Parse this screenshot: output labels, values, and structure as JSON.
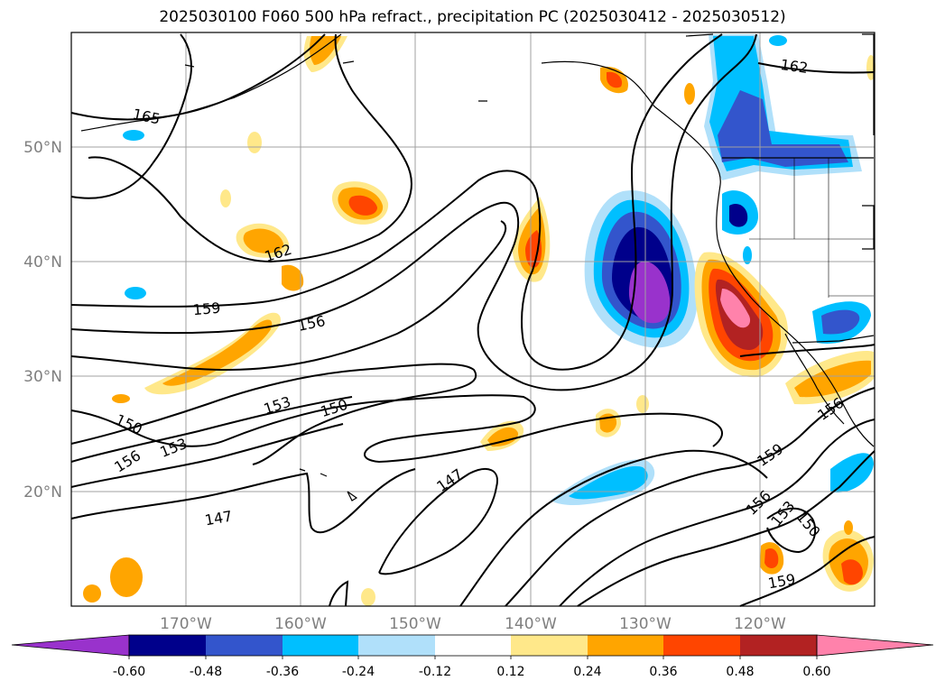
{
  "title": "2025030100 F060 500 hPa refract., precipitation PC (2025030412 - 2025030512)",
  "chart_data": {
    "type": "contour",
    "title": "2025030100 F060 500 hPa refract., precipitation PC (2025030412 - 2025030512)",
    "x_ticks": [
      "170°W",
      "160°W",
      "150°W",
      "140°W",
      "130°W",
      "120°W"
    ],
    "y_ticks": [
      "20°N",
      "30°N",
      "40°N",
      "50°N"
    ],
    "x_tick_values": [
      -170,
      -160,
      -150,
      -140,
      -130,
      -120
    ],
    "y_tick_values": [
      20,
      30,
      40,
      50
    ],
    "lon_range": [
      -180,
      -110
    ],
    "lat_range": [
      10,
      60
    ],
    "grid": true,
    "contour_levels": [
      147,
      150,
      153,
      156,
      159,
      162,
      165
    ],
    "contour_labels": [
      {
        "text": "165"
      },
      {
        "text": "162"
      },
      {
        "text": "162"
      },
      {
        "text": "159"
      },
      {
        "text": "156"
      },
      {
        "text": "153"
      },
      {
        "text": "150"
      },
      {
        "text": "150"
      },
      {
        "text": "153"
      },
      {
        "text": "156"
      },
      {
        "text": "147"
      },
      {
        "text": "147"
      },
      {
        "text": "159"
      },
      {
        "text": "156"
      },
      {
        "text": "153"
      },
      {
        "text": "150"
      },
      {
        "text": "156"
      },
      {
        "text": "159"
      }
    ],
    "colorbar": {
      "ticks": [
        "-0.60",
        "-0.48",
        "-0.36",
        "-0.24",
        "-0.12",
        "0.12",
        "0.24",
        "0.36",
        "0.48",
        "0.60"
      ],
      "colors": [
        "#9932cc",
        "#00008b",
        "#3355cc",
        "#00bfff",
        "#b0e0fa",
        "#ffffff",
        "#ffe88a",
        "#ffa500",
        "#ff4500",
        "#b22222",
        "#ff82ab"
      ],
      "extend": "both"
    }
  }
}
